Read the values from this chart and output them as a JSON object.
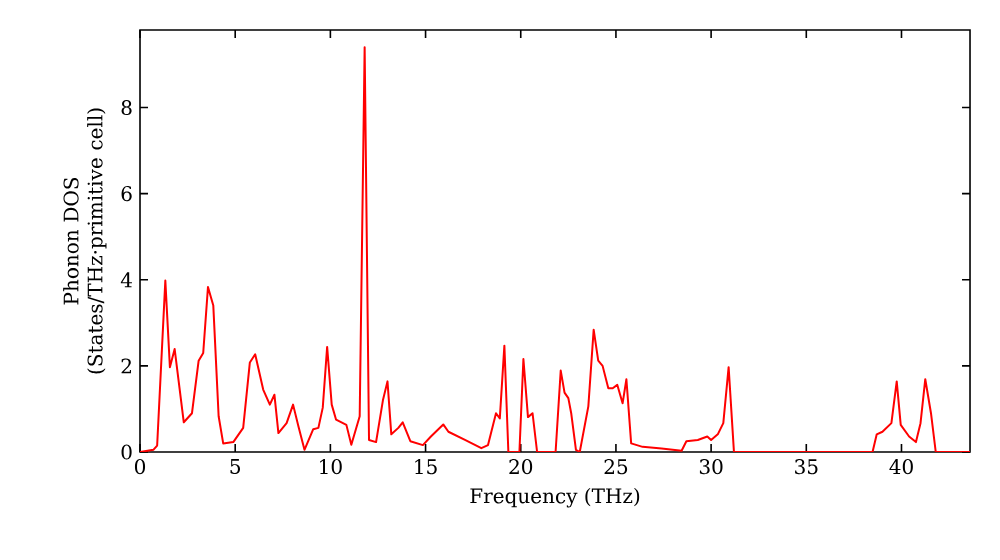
{
  "chart_data": {
    "type": "line",
    "xlabel": "Frequency (THz)",
    "ylabel": "Phonon DOS (States/THz·primitive cell)",
    "xlim": [
      0,
      43.6
    ],
    "ylim": [
      0,
      9.8
    ],
    "xticks": [
      0,
      5,
      10,
      15,
      20,
      25,
      30,
      35,
      40
    ],
    "yticks": [
      0,
      2,
      4,
      6,
      8
    ],
    "series": [
      {
        "color": "#ff0000",
        "x": [
          0,
          0.7,
          0.9,
          1.33,
          1.57,
          1.82,
          2.3,
          2.73,
          3.08,
          3.32,
          3.57,
          3.85,
          4.13,
          4.37,
          4.9,
          5.42,
          5.77,
          6.05,
          6.47,
          6.82,
          7.06,
          7.27,
          7.7,
          8.04,
          8.32,
          8.64,
          9.1,
          9.37,
          9.6,
          9.83,
          10.07,
          10.3,
          10.84,
          11.1,
          11.54,
          11.8,
          12.03,
          12.4,
          12.76,
          13.0,
          13.2,
          13.57,
          13.8,
          14.2,
          14.86,
          15.28,
          15.93,
          16.2,
          17.07,
          17.93,
          18.28,
          18.7,
          18.9,
          19.14,
          19.35,
          19.93,
          20.14,
          20.38,
          20.62,
          20.86,
          21.83,
          22.1,
          22.3,
          22.5,
          22.65,
          22.9,
          23.1,
          23.55,
          23.83,
          24.07,
          24.3,
          24.6,
          24.83,
          25.07,
          25.35,
          25.55,
          25.8,
          26.4,
          27.4,
          28.45,
          28.7,
          29.3,
          29.8,
          30.0,
          30.35,
          30.64,
          30.92,
          31.2,
          38.48,
          38.7,
          39.0,
          39.47,
          39.75,
          39.96,
          40.4,
          40.76,
          41.0,
          41.25,
          41.55,
          41.8,
          43.6
        ],
        "values": [
          0,
          0.05,
          0.15,
          3.98,
          1.97,
          2.39,
          0.69,
          0.9,
          2.12,
          2.3,
          3.83,
          3.4,
          0.83,
          0.2,
          0.23,
          0.56,
          2.08,
          2.27,
          1.45,
          1.1,
          1.33,
          0.44,
          0.67,
          1.1,
          0.6,
          0.05,
          0.53,
          0.56,
          1.03,
          2.44,
          1.1,
          0.75,
          0.63,
          0.17,
          0.83,
          9.4,
          0.28,
          0.23,
          1.2,
          1.64,
          0.41,
          0.56,
          0.69,
          0.25,
          0.16,
          0.36,
          0.64,
          0.47,
          0.28,
          0.09,
          0.16,
          0.9,
          0.78,
          2.47,
          0,
          0,
          2.16,
          0.81,
          0.9,
          0,
          0,
          1.89,
          1.38,
          1.25,
          0.9,
          0.05,
          0,
          1.06,
          2.84,
          2.12,
          2.0,
          1.48,
          1.48,
          1.56,
          1.13,
          1.69,
          0.2,
          0.12,
          0.08,
          0.03,
          0.25,
          0.28,
          0.36,
          0.28,
          0.41,
          0.67,
          1.97,
          0,
          0,
          0.41,
          0.47,
          0.67,
          1.64,
          0.63,
          0.36,
          0.23,
          0.67,
          1.69,
          0.9,
          0,
          0
        ]
      }
    ]
  }
}
